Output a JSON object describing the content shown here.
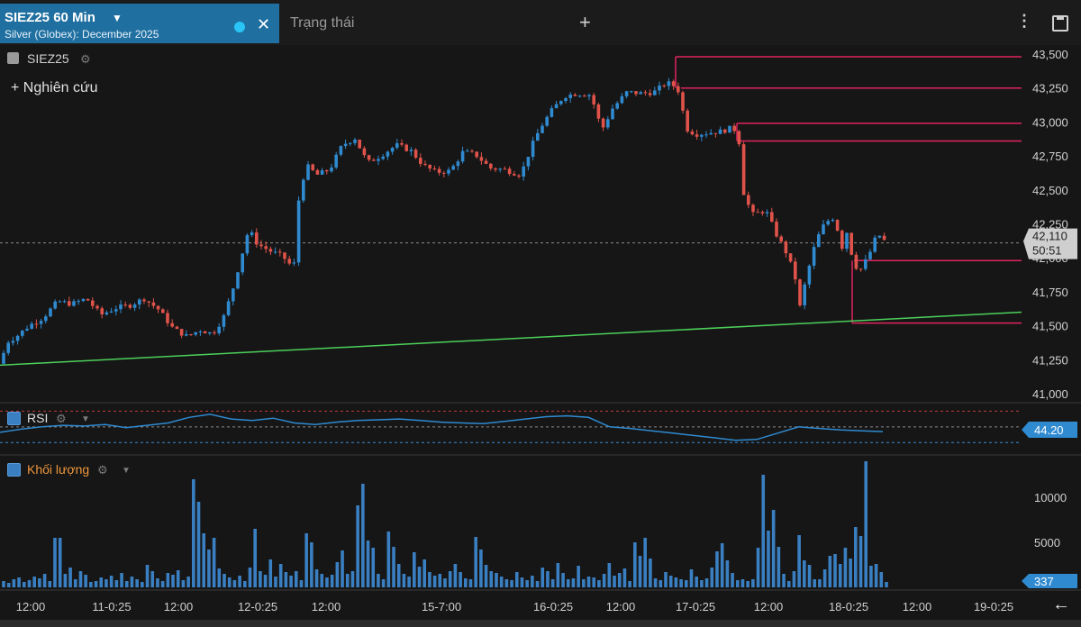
{
  "header": {
    "symbol_title": "SIEZ25 60 Min",
    "subtitle": "Silver (Globex): December 2025",
    "tab2": "Trạng thái",
    "symbol_label": "SIEZ25",
    "research_label": "Nghiên cứu"
  },
  "panels": {
    "rsi_label": "RSI",
    "volume_label": "Khối lượng"
  },
  "colors": {
    "up": "#2f8ad0",
    "down": "#e0534a",
    "level_lines": "#e0245e",
    "trendline": "#4cd05a",
    "accent": "#1f6fa0"
  },
  "chart_data": [
    {
      "type": "candlestick",
      "title": "SIEZ25 60 Min",
      "y_ticks": [
        "43,500",
        "43,250",
        "43,000",
        "42,750",
        "42,500",
        "42,250",
        "42,000",
        "41,750",
        "41,500",
        "41,250",
        "41,000"
      ],
      "ylim": [
        40985,
        43600
      ],
      "x_labels": [
        "12:00",
        "11-0:25",
        "12:00",
        "12-0:25",
        "12:00",
        "15-7:00",
        "16-0:25",
        "12:00",
        "17-0:25",
        "12:00",
        "18-0:25",
        "12:00",
        "19-0:25"
      ],
      "last_price": "42,110",
      "last_price_countdown": "50:51",
      "horizontal_levels": [
        43480,
        43250,
        42990,
        42860,
        41980,
        41520
      ],
      "trendline": {
        "start_value": 41210,
        "end_value": 41600
      },
      "close_path": [
        {
          "x": 0,
          "y": 41220
        },
        {
          "x": 8,
          "y": 41380
        },
        {
          "x": 18,
          "y": 41420
        },
        {
          "x": 32,
          "y": 41500
        },
        {
          "x": 48,
          "y": 41560
        },
        {
          "x": 64,
          "y": 41680
        },
        {
          "x": 80,
          "y": 41660
        },
        {
          "x": 96,
          "y": 41700
        },
        {
          "x": 112,
          "y": 41580
        },
        {
          "x": 128,
          "y": 41630
        },
        {
          "x": 144,
          "y": 41650
        },
        {
          "x": 160,
          "y": 41700
        },
        {
          "x": 176,
          "y": 41620
        },
        {
          "x": 192,
          "y": 41480
        },
        {
          "x": 208,
          "y": 41420
        },
        {
          "x": 222,
          "y": 41470
        },
        {
          "x": 236,
          "y": 41440
        },
        {
          "x": 248,
          "y": 41560
        },
        {
          "x": 258,
          "y": 41760
        },
        {
          "x": 266,
          "y": 41960
        },
        {
          "x": 276,
          "y": 42210
        },
        {
          "x": 286,
          "y": 42100
        },
        {
          "x": 300,
          "y": 42050
        },
        {
          "x": 314,
          "y": 42010
        },
        {
          "x": 326,
          "y": 41920
        },
        {
          "x": 332,
          "y": 42460
        },
        {
          "x": 340,
          "y": 42680
        },
        {
          "x": 352,
          "y": 42610
        },
        {
          "x": 366,
          "y": 42650
        },
        {
          "x": 380,
          "y": 42830
        },
        {
          "x": 394,
          "y": 42880
        },
        {
          "x": 408,
          "y": 42700
        },
        {
          "x": 422,
          "y": 42750
        },
        {
          "x": 440,
          "y": 42830
        },
        {
          "x": 456,
          "y": 42790
        },
        {
          "x": 470,
          "y": 42680
        },
        {
          "x": 484,
          "y": 42630
        },
        {
          "x": 500,
          "y": 42640
        },
        {
          "x": 514,
          "y": 42780
        },
        {
          "x": 528,
          "y": 42760
        },
        {
          "x": 544,
          "y": 42660
        },
        {
          "x": 560,
          "y": 42650
        },
        {
          "x": 578,
          "y": 42610
        },
        {
          "x": 590,
          "y": 42820
        },
        {
          "x": 600,
          "y": 42960
        },
        {
          "x": 612,
          "y": 43080
        },
        {
          "x": 626,
          "y": 43190
        },
        {
          "x": 640,
          "y": 43210
        },
        {
          "x": 656,
          "y": 43200
        },
        {
          "x": 668,
          "y": 42940
        },
        {
          "x": 680,
          "y": 43100
        },
        {
          "x": 696,
          "y": 43220
        },
        {
          "x": 712,
          "y": 43210
        },
        {
          "x": 726,
          "y": 43220
        },
        {
          "x": 740,
          "y": 43290
        },
        {
          "x": 750,
          "y": 43260
        },
        {
          "x": 756,
          "y": 43200
        },
        {
          "x": 760,
          "y": 42960
        },
        {
          "x": 772,
          "y": 42910
        },
        {
          "x": 786,
          "y": 42920
        },
        {
          "x": 800,
          "y": 42930
        },
        {
          "x": 814,
          "y": 42960
        },
        {
          "x": 820,
          "y": 42880
        },
        {
          "x": 826,
          "y": 42450
        },
        {
          "x": 836,
          "y": 42320
        },
        {
          "x": 850,
          "y": 42350
        },
        {
          "x": 862,
          "y": 42170
        },
        {
          "x": 872,
          "y": 42050
        },
        {
          "x": 882,
          "y": 41880
        },
        {
          "x": 888,
          "y": 41640
        },
        {
          "x": 896,
          "y": 41880
        },
        {
          "x": 906,
          "y": 42130
        },
        {
          "x": 916,
          "y": 42260
        },
        {
          "x": 926,
          "y": 42300
        },
        {
          "x": 936,
          "y": 42050
        },
        {
          "x": 942,
          "y": 42260
        },
        {
          "x": 946,
          "y": 41980
        },
        {
          "x": 954,
          "y": 41900
        },
        {
          "x": 964,
          "y": 42010
        },
        {
          "x": 974,
          "y": 42180
        },
        {
          "x": 984,
          "y": 42110
        }
      ]
    },
    {
      "type": "line",
      "title": "RSI",
      "last_value": "44.20",
      "series": [
        {
          "values": [
            43,
            47,
            50,
            52,
            51,
            53,
            49,
            52,
            55,
            62,
            66,
            60,
            58,
            61,
            55,
            53,
            56,
            58,
            59,
            60,
            58,
            56,
            55,
            54,
            57,
            60,
            63,
            64,
            62,
            50,
            48,
            45,
            42,
            39,
            36,
            33,
            34,
            42,
            50,
            48,
            46,
            45,
            44
          ]
        }
      ]
    },
    {
      "type": "bar",
      "title": "Khối lượng",
      "y_ticks": [
        "10000",
        "5000"
      ],
      "last_value": "337",
      "series": [
        {
          "values": [
            700,
            500,
            900,
            1100,
            600,
            800,
            1200,
            1000,
            1500,
            700,
            5500,
            5500,
            1500,
            2200,
            900,
            1800,
            1400,
            600,
            700,
            1100,
            900,
            1300,
            800,
            1600,
            700,
            1200,
            900,
            600,
            2500,
            1800,
            1000,
            700,
            1600,
            1400,
            1900,
            800,
            1200,
            12000,
            9500,
            6000,
            4200,
            5500,
            2100,
            1500,
            1100,
            800,
            1300,
            700,
            2200,
            6500,
            1800,
            1400,
            3100,
            1200,
            2600,
            1700,
            1300,
            1800,
            800,
            6000,
            5000,
            2000,
            1500,
            1100,
            1400,
            2800,
            4100,
            1500,
            1800,
            9100,
            11500,
            5200,
            4400,
            1500,
            900,
            6200,
            4500,
            2600,
            1500,
            1200,
            3900,
            2300,
            3100,
            1700,
            1300,
            1500,
            1000,
            1800,
            2600,
            1700,
            1000,
            900,
            5600,
            4200,
            2500,
            1800,
            1600,
            1200,
            900,
            800,
            1700,
            1100,
            800,
            1300,
            700,
            2200,
            1800,
            900,
            2700,
            1600,
            900,
            1000,
            2400,
            900,
            1200,
            1100,
            800,
            1500,
            2700,
            1300,
            1600,
            2100,
            700,
            5000,
            3500,
            5500,
            3200,
            1000,
            800,
            1700,
            1300,
            1100,
            900,
            800,
            2000,
            1200,
            800,
            1000,
            2200,
            4000,
            4900,
            3000,
            1600,
            800,
            900,
            700,
            900,
            4400,
            12500,
            6300,
            8600,
            4500,
            1500,
            700,
            1800,
            5800,
            3000,
            2500,
            900,
            900,
            2000,
            3500,
            3700,
            2600,
            4400,
            3200,
            6700,
            5700,
            14000,
            2400,
            2600,
            1700,
            600
          ]
        }
      ]
    }
  ]
}
